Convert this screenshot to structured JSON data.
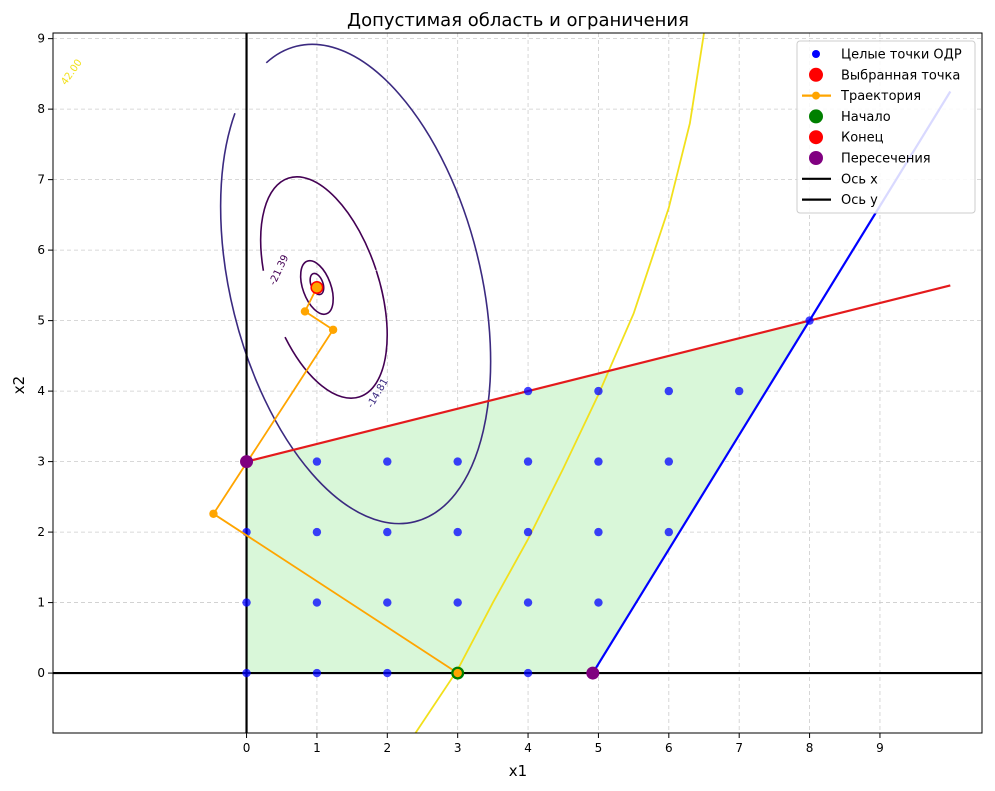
{
  "chart_data": {
    "type": "scatter",
    "title": "Допустимая область и ограничения",
    "xlabel": "x1",
    "ylabel": "x2",
    "xlim": [
      -2.75,
      10.45
    ],
    "ylim": [
      -0.85,
      9.08
    ],
    "xticks": [
      0,
      1,
      2,
      3,
      4,
      5,
      6,
      7,
      8,
      9
    ],
    "yticks": [
      0,
      1,
      2,
      3,
      4,
      5,
      6,
      7,
      8,
      9
    ],
    "grid": true,
    "legend_position": "top-right",
    "feasible_region": [
      [
        0,
        0
      ],
      [
        4.92,
        0
      ],
      [
        8,
        5
      ],
      [
        0,
        3
      ]
    ],
    "integer_points": [
      [
        0,
        0
      ],
      [
        1,
        0
      ],
      [
        2,
        0
      ],
      [
        3,
        0
      ],
      [
        4,
        0
      ],
      [
        0,
        1
      ],
      [
        1,
        1
      ],
      [
        2,
        1
      ],
      [
        3,
        1
      ],
      [
        4,
        1
      ],
      [
        5,
        1
      ],
      [
        0,
        2
      ],
      [
        1,
        2
      ],
      [
        2,
        2
      ],
      [
        3,
        2
      ],
      [
        4,
        2
      ],
      [
        5,
        2
      ],
      [
        6,
        2
      ],
      [
        1,
        3
      ],
      [
        2,
        3
      ],
      [
        3,
        3
      ],
      [
        4,
        3
      ],
      [
        5,
        3
      ],
      [
        6,
        3
      ],
      [
        4,
        4
      ],
      [
        5,
        4
      ],
      [
        6,
        4
      ],
      [
        7,
        4
      ],
      [
        8,
        5
      ]
    ],
    "selected_point": [
      1.0,
      5.47
    ],
    "trajectory": [
      [
        3,
        0
      ],
      [
        -0.47,
        2.26
      ],
      [
        1.23,
        4.87
      ],
      [
        0.83,
        5.13
      ],
      [
        1.0,
        5.47
      ]
    ],
    "start_point": [
      3,
      0
    ],
    "end_point": [
      1.0,
      5.47
    ],
    "intersections": [
      [
        0,
        3
      ],
      [
        4.92,
        0
      ]
    ],
    "constraint_lines": [
      {
        "name": "red",
        "color": "#e41a1c",
        "points": [
          [
            0,
            3
          ],
          [
            10,
            5.5
          ]
        ]
      },
      {
        "name": "blue",
        "color": "#0000ff",
        "points": [
          [
            4.92,
            0
          ],
          [
            10,
            8.25
          ]
        ]
      }
    ],
    "yellow_curve": {
      "color": "#f2e01c",
      "points": [
        [
          2.4,
          -0.85
        ],
        [
          3,
          0.05
        ],
        [
          3.5,
          1.0
        ],
        [
          4,
          1.9
        ],
        [
          4.5,
          2.9
        ],
        [
          5,
          3.95
        ],
        [
          5.5,
          5.1
        ],
        [
          6,
          6.6
        ],
        [
          6.3,
          7.8
        ],
        [
          6.5,
          9.08
        ]
      ]
    },
    "contour_labels": [
      "-21.39",
      "-14.81",
      "42.00"
    ],
    "legend": [
      "Целые точки ОДР",
      "Выбранная точка",
      "Траектория",
      "Начало",
      "Конец",
      "Пересечения",
      "Ось x",
      "Ось y"
    ],
    "colors": {
      "integer": "#0000ff",
      "selected": "#ff0000",
      "trajectory": "#ffa500",
      "start": "#008000",
      "end": "#ff0000",
      "intersection": "#800080",
      "region": "#d9f7d9",
      "axis": "#000000",
      "contour_dark": "#440154",
      "contour_mid": "#3b2a80",
      "contour_outer": "#482475"
    }
  }
}
